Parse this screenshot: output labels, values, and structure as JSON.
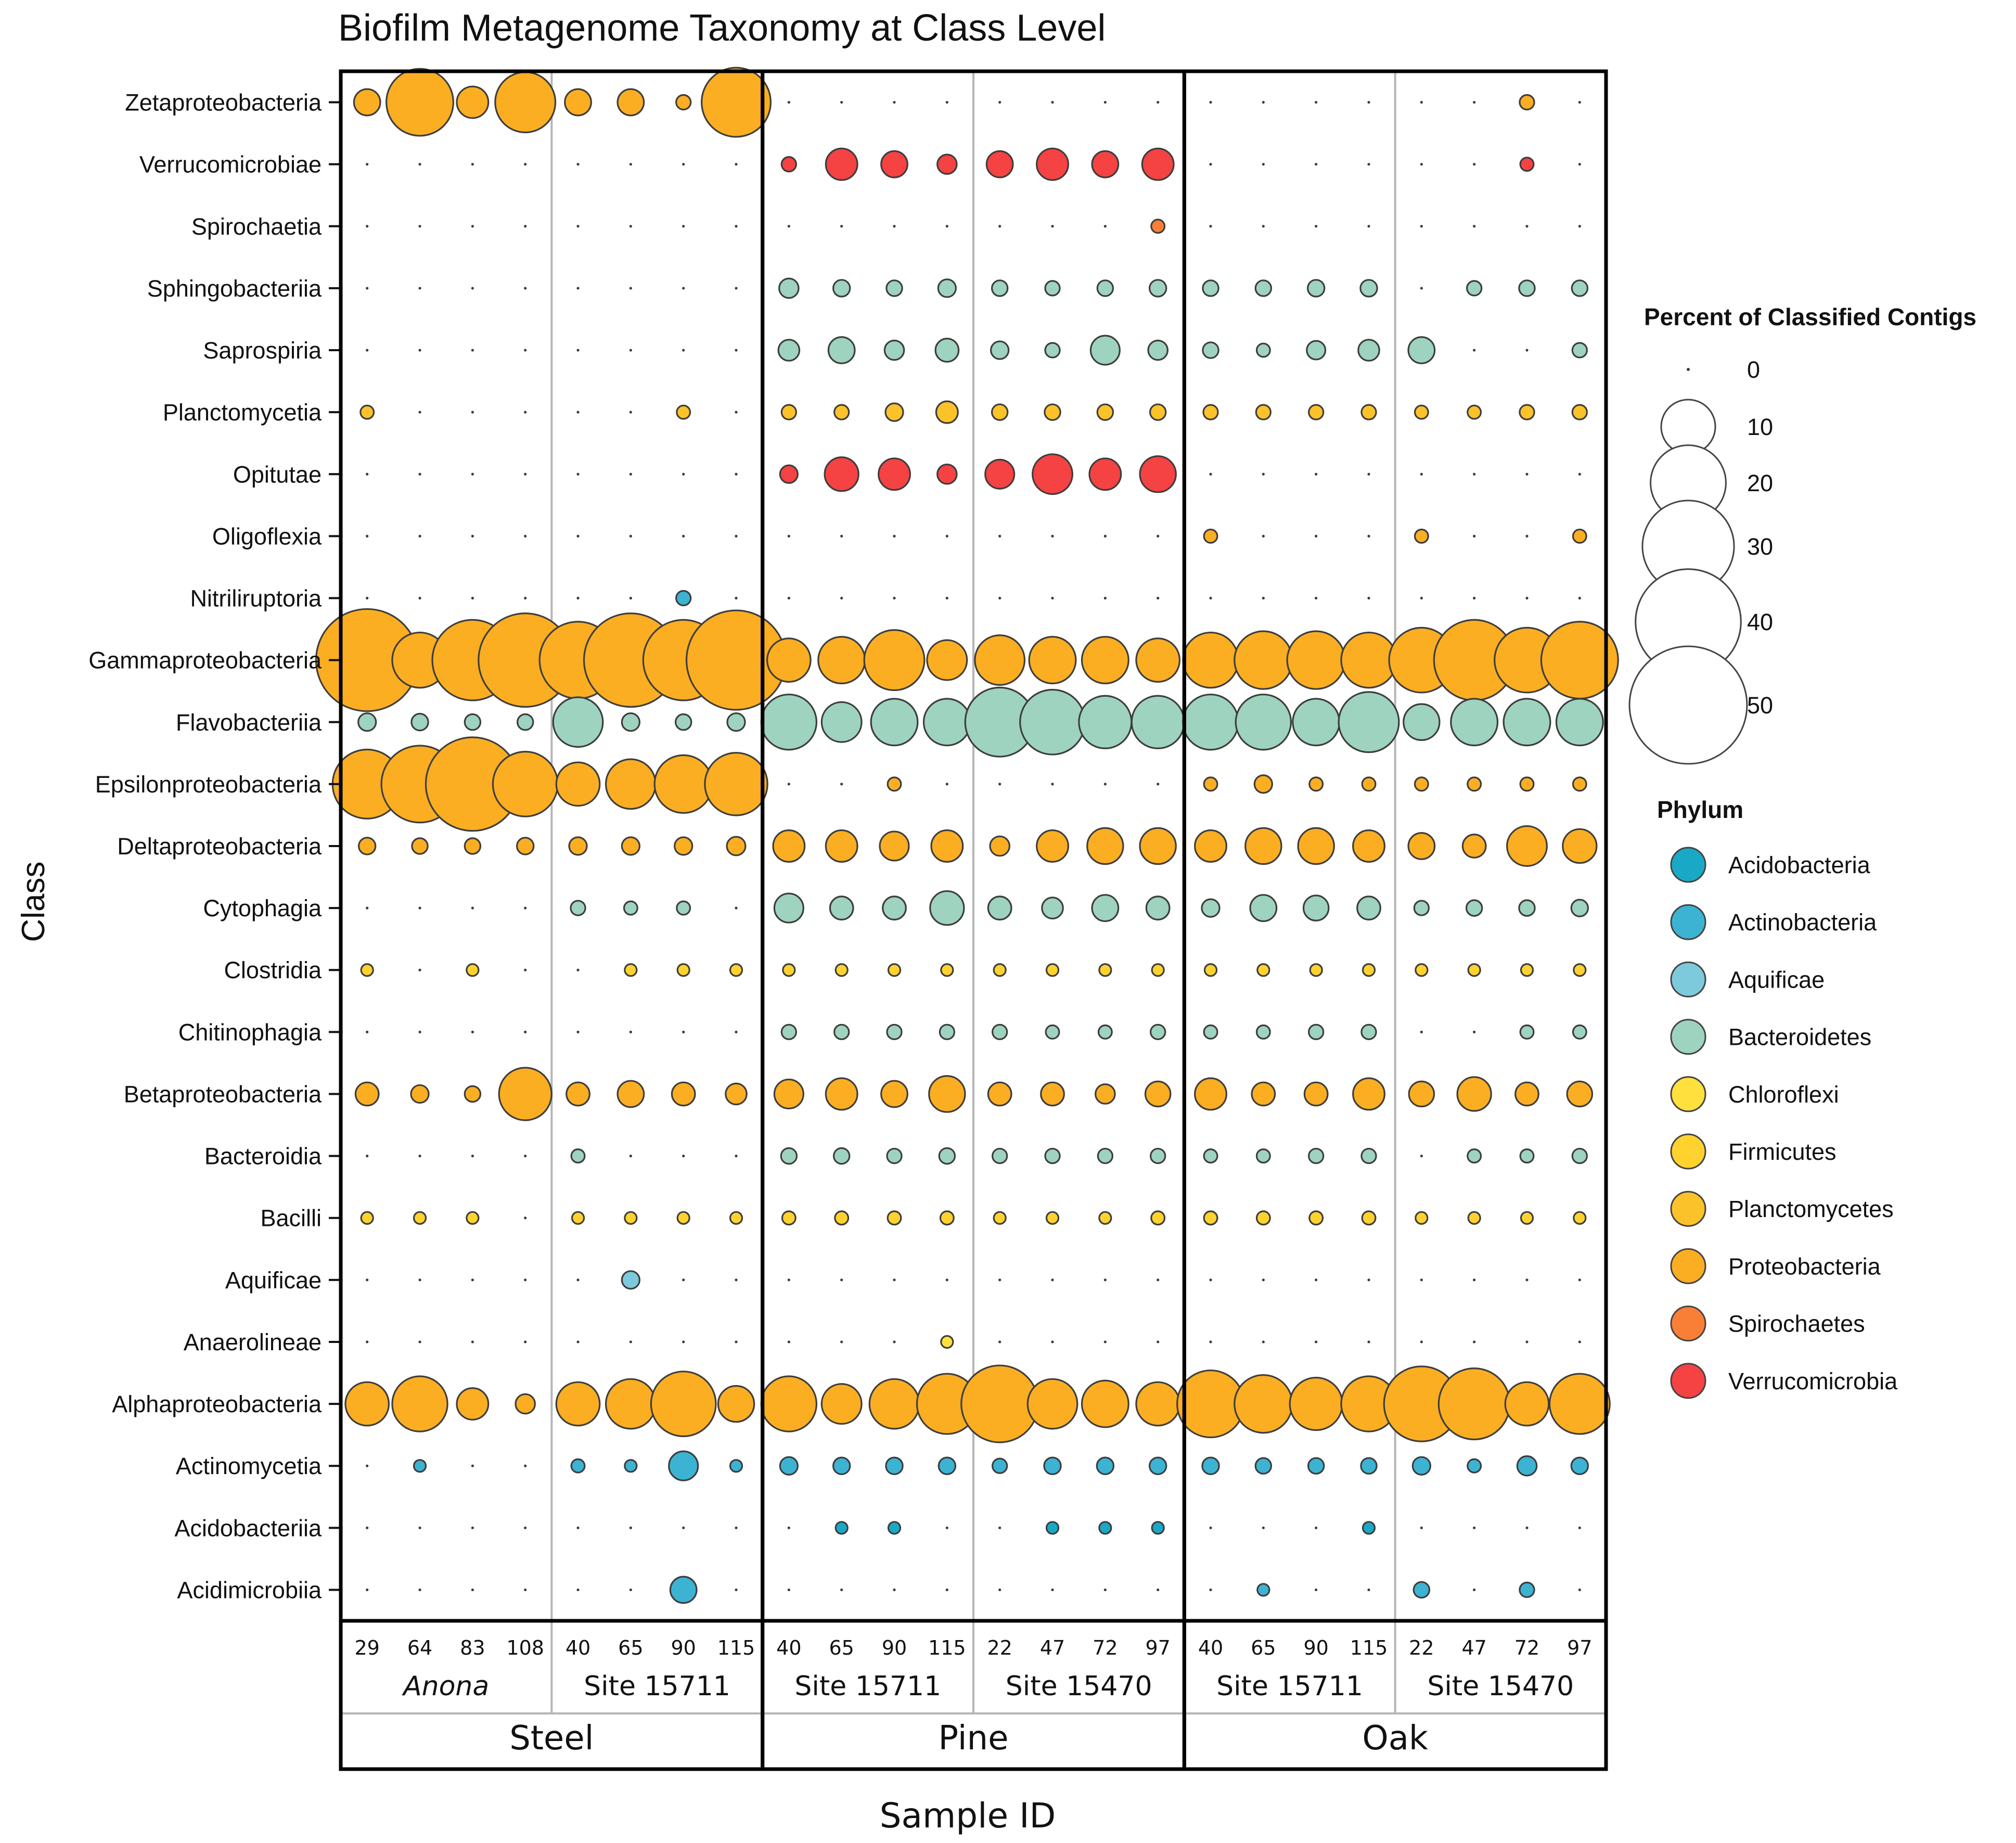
{
  "chart_data": {
    "type": "bubble",
    "title": "Biofilm Metagenome Taxonomy at Class Level",
    "xlabel": "Sample ID",
    "ylabel": "Class",
    "size_legend": {
      "title": "Percent of Classified Contigs",
      "values": [
        0,
        10,
        20,
        30,
        40,
        50
      ]
    },
    "phylum_legend": {
      "title": "Phylum",
      "entries": [
        {
          "name": "Acidobacteria",
          "color": "#19a9c7"
        },
        {
          "name": "Actinobacteria",
          "color": "#3cb3d2"
        },
        {
          "name": "Aquificae",
          "color": "#7dcadd"
        },
        {
          "name": "Bacteroidetes",
          "color": "#9ed3bf"
        },
        {
          "name": "Chloroflexi",
          "color": "#ffe03c"
        },
        {
          "name": "Firmicutes",
          "color": "#ffd22e"
        },
        {
          "name": "Planctomycetes",
          "color": "#fcc229"
        },
        {
          "name": "Proteobacteria",
          "color": "#fbae22"
        },
        {
          "name": "Spirochaetes",
          "color": "#fa7f36"
        },
        {
          "name": "Verrucomicrobia",
          "color": "#f54242"
        }
      ]
    },
    "materials": [
      {
        "name": "Steel",
        "sites": [
          {
            "name": "Anona",
            "italic": true,
            "samples": [
              "29",
              "64",
              "83",
              "108"
            ]
          },
          {
            "name": "Site 15711",
            "italic": false,
            "samples": [
              "40",
              "65",
              "90",
              "115"
            ]
          }
        ]
      },
      {
        "name": "Pine",
        "sites": [
          {
            "name": "Site 15711",
            "italic": false,
            "samples": [
              "40",
              "65",
              "90",
              "115"
            ]
          },
          {
            "name": "Site 15470",
            "italic": false,
            "samples": [
              "22",
              "47",
              "72",
              "97"
            ]
          }
        ]
      },
      {
        "name": "Oak",
        "sites": [
          {
            "name": "Site 15711",
            "italic": false,
            "samples": [
              "40",
              "65",
              "90",
              "115"
            ]
          },
          {
            "name": "Site 15470",
            "italic": false,
            "samples": [
              "22",
              "47",
              "72",
              "97"
            ]
          }
        ]
      }
    ],
    "rows": [
      {
        "class": "Zetaproteobacteria",
        "phylum": "Proteobacteria",
        "values": [
          2,
          15,
          3,
          12,
          2,
          2,
          0.5,
          16,
          0,
          0,
          0,
          0,
          0,
          0,
          0,
          0,
          0,
          0,
          0,
          0,
          0,
          0,
          0.5,
          0
        ]
      },
      {
        "class": "Verrucomicrobiae",
        "phylum": "Verrucomicrobia",
        "values": [
          0,
          0,
          0,
          0,
          0,
          0,
          0,
          0,
          0.5,
          3,
          2,
          1,
          2,
          3,
          2,
          3,
          0,
          0,
          0,
          0,
          0,
          0,
          0.4,
          0
        ]
      },
      {
        "class": "Spirochaetia",
        "phylum": "Spirochaetes",
        "values": [
          0,
          0,
          0,
          0,
          0,
          0,
          0,
          0,
          0,
          0,
          0,
          0,
          0,
          0,
          0,
          0.4,
          0,
          0,
          0,
          0,
          0,
          0,
          0,
          0
        ]
      },
      {
        "class": "Sphingobacteriia",
        "phylum": "Bacteroidetes",
        "values": [
          0,
          0,
          0,
          0,
          0,
          0,
          0,
          0,
          1,
          0.7,
          0.6,
          0.8,
          0.6,
          0.5,
          0.6,
          0.7,
          0.6,
          0.6,
          0.7,
          0.7,
          0,
          0.5,
          0.6,
          0.6
        ]
      },
      {
        "class": "Saprospiria",
        "phylum": "Bacteroidetes",
        "values": [
          0,
          0,
          0,
          0,
          0,
          0,
          0,
          0,
          1.2,
          2,
          1,
          1.5,
          0.8,
          0.5,
          2.5,
          1,
          0.6,
          0.4,
          0.9,
          1.2,
          2,
          0,
          0,
          0.5
        ]
      },
      {
        "class": "Planctomycetia",
        "phylum": "Planctomycetes",
        "values": [
          0.4,
          0,
          0,
          0,
          0,
          0,
          0.4,
          0,
          0.5,
          0.5,
          0.8,
          1.3,
          0.6,
          0.6,
          0.6,
          0.6,
          0.5,
          0.5,
          0.5,
          0.5,
          0.4,
          0.4,
          0.5,
          0.5
        ]
      },
      {
        "class": "Opitutae",
        "phylum": "Verrucomicrobia",
        "values": [
          0,
          0,
          0,
          0,
          0,
          0,
          0,
          0,
          0.8,
          3.5,
          3,
          1,
          2.5,
          5,
          3,
          4,
          0,
          0,
          0,
          0,
          0,
          0,
          0,
          0
        ]
      },
      {
        "class": "Oligoflexia",
        "phylum": "Proteobacteria",
        "values": [
          0,
          0,
          0,
          0,
          0,
          0,
          0,
          0,
          0,
          0,
          0,
          0,
          0,
          0,
          0,
          0,
          0.4,
          0,
          0,
          0,
          0.4,
          0,
          0,
          0.4
        ]
      },
      {
        "class": "Nitriliruptoria",
        "phylum": "Actinobacteria",
        "values": [
          0,
          0,
          0,
          0,
          0,
          0,
          0.5,
          0,
          0,
          0,
          0,
          0,
          0,
          0,
          0,
          0,
          0,
          0,
          0,
          0,
          0,
          0,
          0,
          0
        ]
      },
      {
        "class": "Gammaproteobacteria",
        "phylum": "Proteobacteria",
        "values": [
          36,
          10,
          22,
          30,
          20,
          30,
          22,
          34,
          6,
          7,
          12,
          5,
          8,
          7,
          7,
          6,
          10,
          11,
          11,
          10,
          14,
          22,
          14,
          20
        ]
      },
      {
        "class": "Flavobacteriia",
        "phylum": "Bacteroidetes",
        "values": [
          0.8,
          0.7,
          0.6,
          0.6,
          8,
          0.8,
          0.6,
          0.8,
          10,
          5,
          7,
          7,
          16,
          14,
          9,
          9,
          10,
          10,
          7,
          12,
          4,
          7,
          7,
          7
        ]
      },
      {
        "class": "Epsilonproteobacteria",
        "phylum": "Proteobacteria",
        "values": [
          16,
          20,
          30,
          14,
          6,
          8,
          11,
          13,
          0,
          0,
          0.4,
          0,
          0,
          0,
          0,
          0,
          0.4,
          0.8,
          0.4,
          0.4,
          0.4,
          0.4,
          0.4,
          0.4
        ]
      },
      {
        "class": "Deltaproteobacteria",
        "phylum": "Proteobacteria",
        "values": [
          0.7,
          0.6,
          0.6,
          0.7,
          0.8,
          0.8,
          0.8,
          0.9,
          3,
          3,
          2.5,
          3,
          1,
          3,
          4,
          4,
          3,
          4,
          4,
          3,
          2,
          1.5,
          5,
          3.5
        ]
      },
      {
        "class": "Cytophagia",
        "phylum": "Bacteroidetes",
        "values": [
          0,
          0,
          0,
          0,
          0.5,
          0.4,
          0.4,
          0,
          2.5,
          1.5,
          1.5,
          3.5,
          1.5,
          1.2,
          2,
          1.5,
          0.8,
          2,
          1.8,
          1.5,
          0.5,
          0.6,
          0.6,
          0.7
        ]
      },
      {
        "class": "Clostridia",
        "phylum": "Firmicutes",
        "values": [
          0.3,
          0,
          0.3,
          0,
          0,
          0.3,
          0.3,
          0.3,
          0.3,
          0.3,
          0.3,
          0.3,
          0.3,
          0.3,
          0.3,
          0.3,
          0.3,
          0.3,
          0.3,
          0.3,
          0.3,
          0.3,
          0.3,
          0.3
        ]
      },
      {
        "class": "Chitinophagia",
        "phylum": "Bacteroidetes",
        "values": [
          0,
          0,
          0,
          0,
          0,
          0,
          0,
          0,
          0.5,
          0.5,
          0.5,
          0.5,
          0.5,
          0.4,
          0.4,
          0.5,
          0.4,
          0.4,
          0.5,
          0.5,
          0,
          0,
          0.4,
          0.4
        ]
      },
      {
        "class": "Betaproteobacteria",
        "phylum": "Proteobacteria",
        "values": [
          1.5,
          0.8,
          0.6,
          9,
          1.5,
          2,
          1.5,
          1.2,
          2.5,
          3,
          2,
          4,
          1.5,
          1.5,
          1,
          1.8,
          3,
          1.5,
          1.5,
          3,
          1.8,
          3.5,
          1.5,
          1.8
        ]
      },
      {
        "class": "Bacteroidia",
        "phylum": "Bacteroidetes",
        "values": [
          0,
          0,
          0,
          0,
          0.4,
          0,
          0,
          0,
          0.6,
          0.6,
          0.5,
          0.6,
          0.5,
          0.5,
          0.5,
          0.5,
          0.4,
          0.4,
          0.5,
          0.5,
          0,
          0.4,
          0.4,
          0.5
        ]
      },
      {
        "class": "Bacilli",
        "phylum": "Firmicutes",
        "values": [
          0.3,
          0.3,
          0.3,
          0,
          0.3,
          0.3,
          0.3,
          0.3,
          0.4,
          0.4,
          0.4,
          0.4,
          0.3,
          0.3,
          0.3,
          0.4,
          0.4,
          0.4,
          0.4,
          0.4,
          0.3,
          0.3,
          0.3,
          0.3
        ]
      },
      {
        "class": "Aquificae",
        "phylum": "Aquificae",
        "values": [
          0,
          0,
          0,
          0,
          0,
          0.8,
          0,
          0,
          0,
          0,
          0,
          0,
          0,
          0,
          0,
          0,
          0,
          0,
          0,
          0,
          0,
          0,
          0,
          0
        ]
      },
      {
        "class": "Anaerolineae",
        "phylum": "Chloroflexi",
        "values": [
          0,
          0,
          0,
          0,
          0,
          0,
          0,
          0,
          0,
          0,
          0,
          0.3,
          0,
          0,
          0,
          0,
          0,
          0,
          0,
          0,
          0,
          0,
          0,
          0
        ]
      },
      {
        "class": "Alphaproteobacteria",
        "phylum": "Proteobacteria",
        "values": [
          6,
          10,
          3,
          1,
          6,
          8,
          14,
          4,
          10,
          5,
          8,
          12,
          20,
          8,
          7,
          6,
          15,
          11,
          9,
          10,
          19,
          17,
          6,
          12
        ]
      },
      {
        "class": "Actinomycetia",
        "phylum": "Actinobacteria",
        "values": [
          0,
          0.3,
          0,
          0,
          0.4,
          0.3,
          2.5,
          0.3,
          0.8,
          0.7,
          0.7,
          0.7,
          0.5,
          0.7,
          0.7,
          0.7,
          0.7,
          0.6,
          0.6,
          0.6,
          0.8,
          0.4,
          1,
          0.7
        ]
      },
      {
        "class": "Acidobacteriia",
        "phylum": "Acidobacteria",
        "values": [
          0,
          0,
          0,
          0,
          0,
          0,
          0,
          0,
          0,
          0.3,
          0.3,
          0,
          0,
          0.3,
          0.3,
          0.3,
          0,
          0,
          0,
          0.3,
          0,
          0,
          0,
          0
        ]
      },
      {
        "class": "Acidimicrobiia",
        "phylum": "Actinobacteria",
        "values": [
          0,
          0,
          0,
          0,
          0,
          0,
          2,
          0,
          0,
          0,
          0,
          0,
          0,
          0,
          0,
          0,
          0,
          0.3,
          0,
          0,
          0.6,
          0,
          0.5,
          0
        ]
      }
    ]
  }
}
